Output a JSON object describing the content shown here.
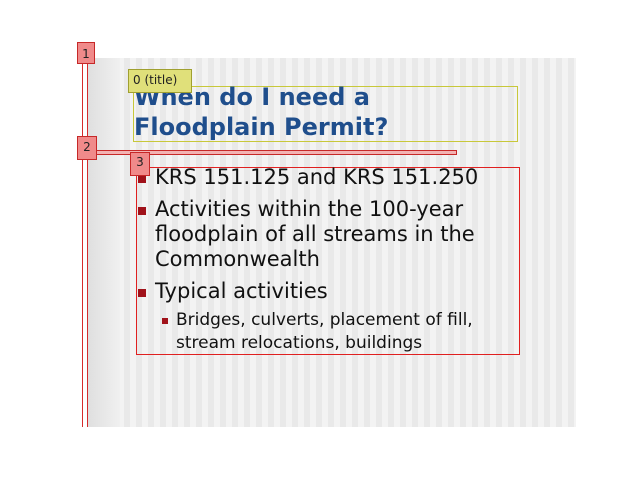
{
  "slide": {
    "title": "When do I need a Floodplain Permit?",
    "bullets": [
      "KRS 151.125 and KRS 151.250",
      "Activities within the 100-year floodplain of all streams in the Commonwealth",
      "Typical activities"
    ],
    "sub_bullets": [
      "Bridges, culverts, placement of fill, stream relocations, buildings"
    ]
  },
  "annotations": {
    "tag_1": "1",
    "tag_2": "2",
    "tag_3": "3",
    "tag_0": "0 (title)"
  },
  "colors": {
    "title_text": "#1f4e8c",
    "bullet_marker": "#a0121a",
    "box_red": "#e02020",
    "box_yellow": "#c8c83a"
  }
}
